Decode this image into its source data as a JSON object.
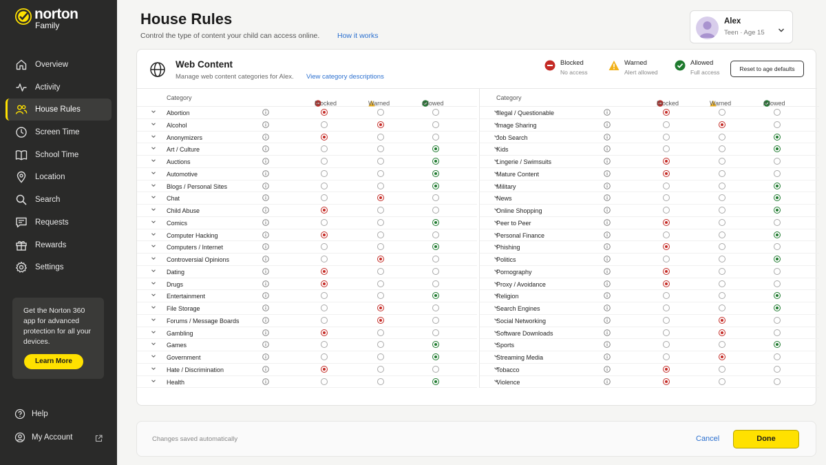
{
  "brand": {
    "name": "norton",
    "sub": "Family"
  },
  "colors": {
    "accent": "#ffe100",
    "blocked": "#c42a25",
    "warned": "#f2b21a",
    "allowed": "#1e7a2e",
    "link": "#2a6fcf"
  },
  "sidebar": {
    "items": [
      {
        "label": "Overview",
        "icon": "home-icon"
      },
      {
        "label": "Activity",
        "icon": "activity-icon"
      },
      {
        "label": "House Rules",
        "icon": "users-icon",
        "active": true
      },
      {
        "label": "Screen Time",
        "icon": "clock-icon"
      },
      {
        "label": "School Time",
        "icon": "book-icon"
      },
      {
        "label": "Location",
        "icon": "location-icon"
      },
      {
        "label": "Search",
        "icon": "search-icon"
      },
      {
        "label": "Requests",
        "icon": "message-icon"
      },
      {
        "label": "Rewards",
        "icon": "gift-icon"
      },
      {
        "label": "Settings",
        "icon": "gear-icon"
      }
    ],
    "promo": {
      "text": "Get the Norton 360 app for advanced protection for all your devices.",
      "button": "Learn More"
    },
    "help": "Help",
    "account": "My Account"
  },
  "header": {
    "title": "House Rules",
    "subtitle": "Control the type of content your child can access online.",
    "link": "How it works"
  },
  "profile": {
    "name": "Alex",
    "meta": "Teen · Age 15"
  },
  "web_content": {
    "title": "Web Content",
    "subtitle": "Manage web content categories for Alex.",
    "link": "View category descriptions",
    "legend": [
      {
        "title": "Blocked",
        "desc": "No access",
        "icon": "blocked-icon"
      },
      {
        "title": "Warned",
        "desc": "Alert allowed",
        "icon": "warning-icon"
      },
      {
        "title": "Allowed",
        "desc": "Full access",
        "icon": "allowed-icon"
      }
    ],
    "reset": "Reset to age defaults",
    "columns": {
      "category": "Category",
      "blocked": "Blocked",
      "warned": "Warned",
      "allowed": "Allowed"
    },
    "left": [
      {
        "name": "Abortion",
        "state": "blocked"
      },
      {
        "name": "Alcohol",
        "state": "warned"
      },
      {
        "name": "Anonymizers",
        "state": "blocked"
      },
      {
        "name": "Art / Culture",
        "state": "allowed"
      },
      {
        "name": "Auctions",
        "state": "allowed"
      },
      {
        "name": "Automotive",
        "state": "allowed"
      },
      {
        "name": "Blogs / Personal Sites",
        "state": "allowed"
      },
      {
        "name": "Chat",
        "state": "warned"
      },
      {
        "name": "Child Abuse",
        "state": "blocked"
      },
      {
        "name": "Comics",
        "state": "allowed"
      },
      {
        "name": "Computer Hacking",
        "state": "blocked"
      },
      {
        "name": "Computers / Internet",
        "state": "allowed"
      },
      {
        "name": "Controversial Opinions",
        "state": "warned"
      },
      {
        "name": "Dating",
        "state": "blocked"
      },
      {
        "name": "Drugs",
        "state": "blocked"
      },
      {
        "name": "Entertainment",
        "state": "allowed"
      },
      {
        "name": "File Storage",
        "state": "warned"
      },
      {
        "name": "Forums / Message Boards",
        "state": "warned"
      },
      {
        "name": "Gambling",
        "state": "blocked"
      },
      {
        "name": "Games",
        "state": "allowed"
      },
      {
        "name": "Government",
        "state": "allowed"
      },
      {
        "name": "Hate / Discrimination",
        "state": "blocked"
      },
      {
        "name": "Health",
        "state": "allowed"
      }
    ],
    "right": [
      {
        "name": "Illegal / Questionable",
        "state": "blocked"
      },
      {
        "name": "Image Sharing",
        "state": "warned"
      },
      {
        "name": "Job Search",
        "state": "allowed"
      },
      {
        "name": "Kids",
        "state": "allowed"
      },
      {
        "name": "Lingerie / Swimsuits",
        "state": "blocked"
      },
      {
        "name": "Mature Content",
        "state": "blocked"
      },
      {
        "name": "Military",
        "state": "allowed"
      },
      {
        "name": "News",
        "state": "allowed"
      },
      {
        "name": "Online Shopping",
        "state": "allowed"
      },
      {
        "name": "Peer to Peer",
        "state": "blocked"
      },
      {
        "name": "Personal Finance",
        "state": "allowed"
      },
      {
        "name": "Phishing",
        "state": "blocked"
      },
      {
        "name": "Politics",
        "state": "allowed"
      },
      {
        "name": "Pornography",
        "state": "blocked"
      },
      {
        "name": "Proxy / Avoidance",
        "state": "blocked"
      },
      {
        "name": "Religion",
        "state": "allowed"
      },
      {
        "name": "Search Engines",
        "state": "allowed"
      },
      {
        "name": "Social Networking",
        "state": "warned"
      },
      {
        "name": "Software Downloads",
        "state": "warned"
      },
      {
        "name": "Sports",
        "state": "allowed"
      },
      {
        "name": "Streaming Media",
        "state": "warned"
      },
      {
        "name": "Tobacco",
        "state": "blocked"
      },
      {
        "name": "Violence",
        "state": "blocked"
      }
    ]
  },
  "footer": {
    "saved": "Changes saved automatically",
    "cancel": "Cancel",
    "done": "Done"
  }
}
